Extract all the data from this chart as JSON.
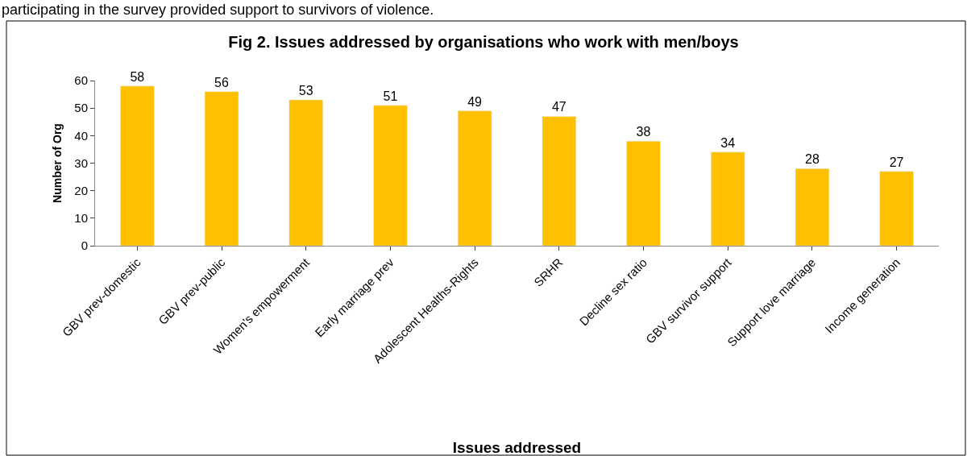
{
  "chart_data": {
    "type": "bar",
    "title": "Fig 2. Issues addressed by organisations who work with men/boys",
    "xlabel": "Issues addressed",
    "ylabel": "Number of Org",
    "annotations": [
      "participating in the survey provided support to survivors of violence."
    ],
    "categories": [
      "GBV prev-domestic",
      "GBV prev-public",
      "Women's empowerment",
      "Early marriage prev",
      "Adolescent Healths-Rights",
      "SRHR",
      "Decline sex ratio",
      "GBV survivor support",
      "Support love marriage",
      "Income generation"
    ],
    "values": [
      58,
      56,
      53,
      51,
      49,
      47,
      38,
      34,
      28,
      27
    ],
    "color": "#ffc000",
    "ylim": [
      0,
      60
    ],
    "yticks": [
      0,
      10,
      20,
      30,
      40,
      50,
      60
    ],
    "data_labels": true,
    "legend": false
  }
}
